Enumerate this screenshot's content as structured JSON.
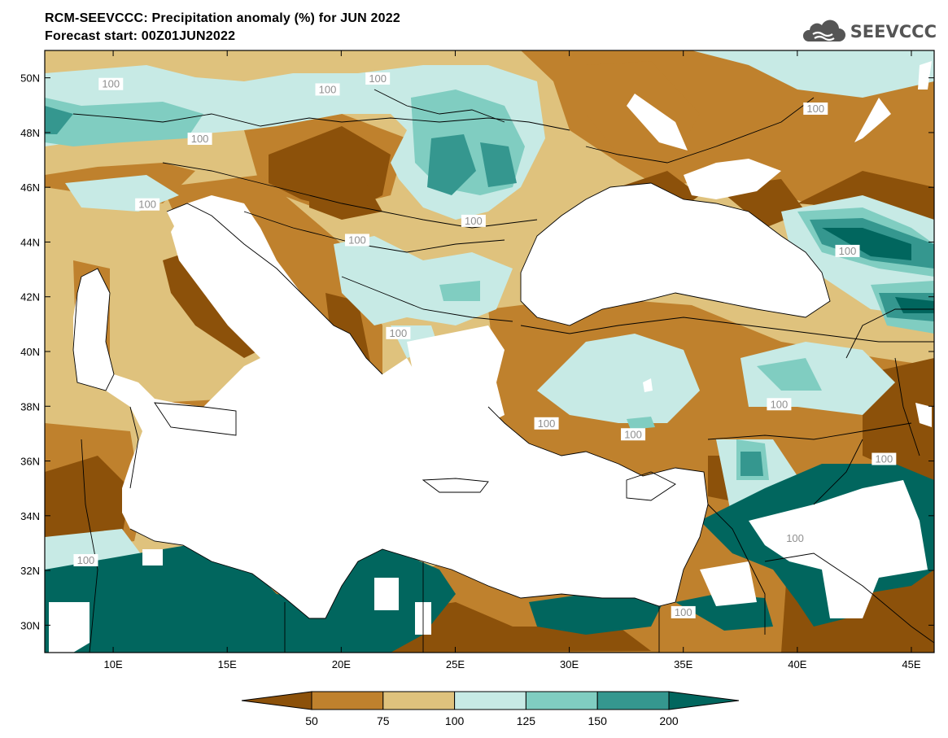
{
  "title": {
    "line1": "RCM-SEEVCCC: Precipitation anomaly (%) for JUN 2022",
    "line2": "Forecast start: 00Z01JUN2022"
  },
  "logo": {
    "text": "SEEVCCC",
    "icon": "cloud-icon"
  },
  "chart_data": {
    "type": "heatmap",
    "variable": "Precipitation anomaly (%)",
    "xlim": [
      7,
      46
    ],
    "ylim": [
      29,
      51
    ],
    "x_ticks": [
      {
        "value": 10,
        "label": "10E"
      },
      {
        "value": 15,
        "label": "15E"
      },
      {
        "value": 20,
        "label": "20E"
      },
      {
        "value": 25,
        "label": "25E"
      },
      {
        "value": 30,
        "label": "30E"
      },
      {
        "value": 35,
        "label": "35E"
      },
      {
        "value": 40,
        "label": "40E"
      },
      {
        "value": 45,
        "label": "45E"
      }
    ],
    "y_ticks": [
      {
        "value": 30,
        "label": "30N"
      },
      {
        "value": 32,
        "label": "32N"
      },
      {
        "value": 34,
        "label": "34N"
      },
      {
        "value": 36,
        "label": "36N"
      },
      {
        "value": 38,
        "label": "38N"
      },
      {
        "value": 40,
        "label": "40N"
      },
      {
        "value": 42,
        "label": "42N"
      },
      {
        "value": 44,
        "label": "44N"
      },
      {
        "value": 46,
        "label": "46N"
      },
      {
        "value": 48,
        "label": "48N"
      },
      {
        "value": 50,
        "label": "50N"
      }
    ],
    "colorbar": {
      "levels": [
        "50",
        "75",
        "100",
        "125",
        "150",
        "200"
      ],
      "colors": [
        "#8c510a",
        "#bf812d",
        "#dfc27d",
        "#c7eae5",
        "#80cdc1",
        "#35978f",
        "#01665e"
      ]
    },
    "contour_labels": [
      {
        "text": "100",
        "lon": 9.9,
        "lat": 49.7
      },
      {
        "text": "100",
        "lon": 19.4,
        "lat": 49.5
      },
      {
        "text": "100",
        "lon": 21.6,
        "lat": 49.9
      },
      {
        "text": "100",
        "lon": 13.8,
        "lat": 47.7
      },
      {
        "text": "100",
        "lon": 11.5,
        "lat": 45.3
      },
      {
        "text": "100",
        "lon": 25.8,
        "lat": 44.7
      },
      {
        "text": "100",
        "lon": 20.7,
        "lat": 44.0
      },
      {
        "text": "100",
        "lon": 40.8,
        "lat": 48.8
      },
      {
        "text": "100",
        "lon": 42.2,
        "lat": 43.6
      },
      {
        "text": "100",
        "lon": 22.5,
        "lat": 40.6
      },
      {
        "text": "100",
        "lon": 39.2,
        "lat": 38.0
      },
      {
        "text": "100",
        "lon": 29.0,
        "lat": 37.3
      },
      {
        "text": "100",
        "lon": 32.8,
        "lat": 36.9
      },
      {
        "text": "100",
        "lon": 43.8,
        "lat": 36.0
      },
      {
        "text": "100",
        "lon": 39.9,
        "lat": 33.1
      },
      {
        "text": "100",
        "lon": 8.8,
        "lat": 32.3
      },
      {
        "text": "100",
        "lon": 35.0,
        "lat": 30.4
      }
    ]
  }
}
